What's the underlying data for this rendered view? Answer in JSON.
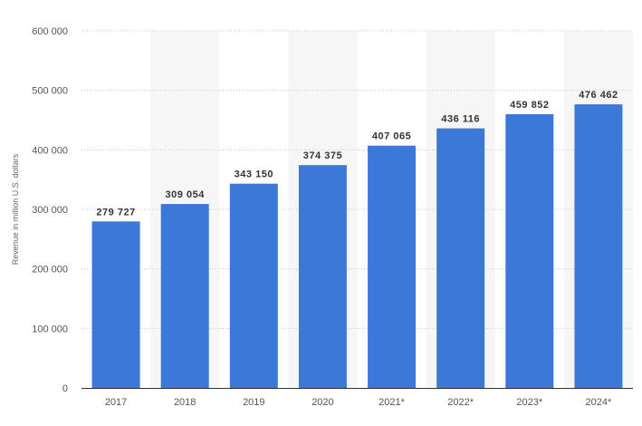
{
  "chart_data": {
    "type": "bar",
    "title": "",
    "xlabel": "",
    "ylabel": "Revenue in million U.S. dollars",
    "ylim": [
      0,
      600000
    ],
    "yticks": [
      0,
      100000,
      200000,
      300000,
      400000,
      500000,
      600000
    ],
    "ytick_labels": [
      "0",
      "100 000",
      "200 000",
      "300 000",
      "400 000",
      "500 000",
      "600 000"
    ],
    "categories": [
      "2017",
      "2018",
      "2019",
      "2020",
      "2021*",
      "2022*",
      "2023*",
      "2024*"
    ],
    "values": [
      279727,
      309054,
      343150,
      374375,
      407065,
      436116,
      459852,
      476462
    ],
    "value_labels": [
      "279 727",
      "309 054",
      "343 150",
      "374 375",
      "407 065",
      "436 116",
      "459 852",
      "476 462"
    ],
    "grid": true,
    "legend": "none",
    "colors": {
      "bar": "#3b78d8",
      "band": "#f6f6f6",
      "grid": "#c8c8c8",
      "axis": "#333333"
    }
  }
}
